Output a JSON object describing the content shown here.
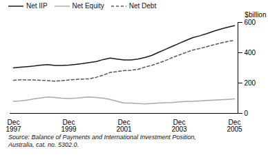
{
  "chart_data": {
    "type": "line",
    "categories": [
      "Dec\n1997",
      null,
      null,
      null,
      null,
      null,
      null,
      null,
      "Dec\n1999",
      null,
      null,
      null,
      null,
      null,
      null,
      null,
      "Dec\n2001",
      null,
      null,
      null,
      null,
      null,
      null,
      null,
      "Dec\n2003",
      null,
      null,
      null,
      null,
      null,
      null,
      null,
      "Dec\n2005"
    ],
    "series": [
      {
        "name": "Net IIP",
        "color": "#1a1a1a",
        "line_style": "solid",
        "values": [
          300,
          305,
          308,
          312,
          318,
          322,
          316,
          316,
          318,
          323,
          328,
          335,
          342,
          355,
          365,
          358,
          352,
          352,
          358,
          368,
          382,
          402,
          422,
          442,
          462,
          482,
          500,
          512,
          526,
          542,
          556,
          568,
          578
        ]
      },
      {
        "name": "Net Equity",
        "color": "#aaaaaa",
        "line_style": "solid",
        "values": [
          80,
          82,
          88,
          95,
          102,
          108,
          105,
          100,
          98,
          100,
          104,
          108,
          105,
          100,
          92,
          80,
          68,
          68,
          65,
          62,
          65,
          68,
          70,
          72,
          76,
          78,
          80,
          82,
          85,
          88,
          90,
          92,
          95
        ]
      },
      {
        "name": "Net Debt",
        "color": "#555555",
        "line_style": "dashed",
        "values": [
          218,
          222,
          220,
          220,
          218,
          216,
          212,
          216,
          220,
          224,
          226,
          228,
          238,
          252,
          270,
          276,
          282,
          284,
          290,
          305,
          316,
          332,
          348,
          368,
          385,
          402,
          418,
          428,
          440,
          452,
          464,
          474,
          482
        ]
      }
    ],
    "ylabel": "$billion",
    "ylim": [
      0,
      600
    ],
    "yticks": [
      0,
      200,
      400,
      600
    ],
    "grid": false,
    "legend": "upper left",
    "caption": "Source: Balance of Payments and International Investment Position,\nAustralia, cat. no. 5302.0."
  }
}
